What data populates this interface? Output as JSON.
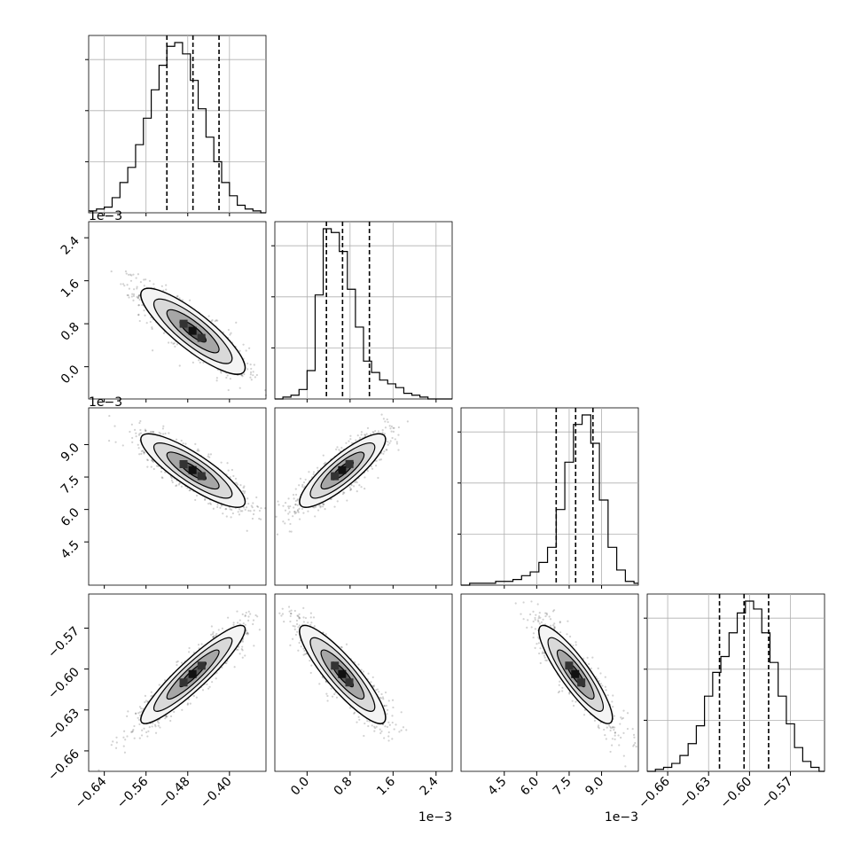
{
  "chart_data": {
    "type": "corner",
    "parameters": [
      {
        "range": [
          -0.67,
          -0.33
        ],
        "ticks": [
          -0.64,
          -0.56,
          -0.48,
          -0.4
        ],
        "tick_labels": [
          "−0.64",
          "−0.56",
          "−0.48",
          "−0.40"
        ],
        "offset": ""
      },
      {
        "range": [
          -0.0006,
          0.0027
        ],
        "ticks": [
          0.0,
          0.0008,
          0.0016,
          0.0024
        ],
        "tick_labels": [
          "0.0",
          "0.8",
          "1.6",
          "2.4"
        ],
        "offset": "1e−3"
      },
      {
        "range": [
          0.0025,
          0.0107
        ],
        "ticks": [
          0.0045,
          0.006,
          0.0075,
          0.009
        ],
        "tick_labels": [
          "4.5",
          "6.0",
          "7.5",
          "9.0"
        ],
        "offset": "1e−3"
      },
      {
        "range": [
          -0.675,
          -0.545
        ],
        "ticks": [
          -0.66,
          -0.63,
          -0.6,
          -0.57
        ],
        "tick_labels": [
          "−0.66",
          "−0.63",
          "−0.60",
          "−0.57"
        ],
        "offset": ""
      }
    ],
    "marginals": [
      {
        "bin_edges": [
          -0.67,
          -0.655,
          -0.64,
          -0.625,
          -0.61,
          -0.595,
          -0.58,
          -0.565,
          -0.55,
          -0.535,
          -0.52,
          -0.505,
          -0.49,
          -0.475,
          -0.46,
          -0.445,
          -0.43,
          -0.415,
          -0.4,
          -0.385,
          -0.37,
          -0.355,
          -0.34,
          -0.33
        ],
        "counts": [
          1,
          2,
          3,
          8,
          16,
          24,
          36,
          50,
          65,
          78,
          88,
          90,
          84,
          70,
          55,
          40,
          27,
          16,
          9,
          4,
          2,
          1,
          0
        ],
        "quantiles": [
          -0.52,
          -0.47,
          -0.42
        ]
      },
      {
        "bin_edges": [
          -0.0006,
          -0.00045,
          -0.0003,
          -0.00015,
          0.0,
          0.00015,
          0.0003,
          0.00045,
          0.0006,
          0.00075,
          0.0009,
          0.00105,
          0.0012,
          0.00135,
          0.0015,
          0.00165,
          0.0018,
          0.00195,
          0.0021,
          0.00225,
          0.0024,
          0.00255,
          0.0027
        ],
        "counts": [
          0,
          1,
          2,
          5,
          15,
          55,
          90,
          88,
          78,
          58,
          38,
          20,
          14,
          10,
          8,
          6,
          3,
          2,
          1,
          0,
          0,
          0
        ],
        "quantiles": [
          0.00036,
          0.00066,
          0.00116
        ]
      },
      {
        "bin_edges": [
          0.0025,
          0.0029,
          0.0033,
          0.0037,
          0.0041,
          0.0045,
          0.0049,
          0.0053,
          0.0057,
          0.0061,
          0.0065,
          0.0069,
          0.0073,
          0.0077,
          0.0081,
          0.0085,
          0.0089,
          0.0093,
          0.0097,
          0.0101,
          0.0105,
          0.0107
        ],
        "counts": [
          0,
          1,
          1,
          1,
          2,
          2,
          3,
          5,
          7,
          12,
          20,
          40,
          65,
          85,
          90,
          75,
          45,
          20,
          8,
          2,
          1
        ],
        "quantiles": [
          0.0069,
          0.0078,
          0.0086
        ]
      },
      {
        "bin_edges": [
          -0.675,
          -0.669,
          -0.663,
          -0.657,
          -0.651,
          -0.645,
          -0.639,
          -0.633,
          -0.627,
          -0.621,
          -0.615,
          -0.609,
          -0.603,
          -0.597,
          -0.591,
          -0.585,
          -0.579,
          -0.573,
          -0.567,
          -0.561,
          -0.555,
          -0.549,
          -0.545
        ],
        "counts": [
          0,
          1,
          2,
          4,
          8,
          14,
          23,
          38,
          50,
          58,
          70,
          80,
          86,
          82,
          70,
          55,
          38,
          24,
          12,
          5,
          2,
          0
        ],
        "quantiles": [
          -0.622,
          -0.604,
          -0.586
        ]
      }
    ],
    "correlations": [
      {
        "i": 1,
        "j": 0,
        "rho": -0.85
      },
      {
        "i": 2,
        "j": 0,
        "rho": -0.85
      },
      {
        "i": 2,
        "j": 1,
        "rho": 0.85
      },
      {
        "i": 3,
        "j": 0,
        "rho": 0.92
      },
      {
        "i": 3,
        "j": 1,
        "rho": -0.88
      },
      {
        "i": 3,
        "j": 2,
        "rho": -0.88
      }
    ],
    "grid": true
  }
}
